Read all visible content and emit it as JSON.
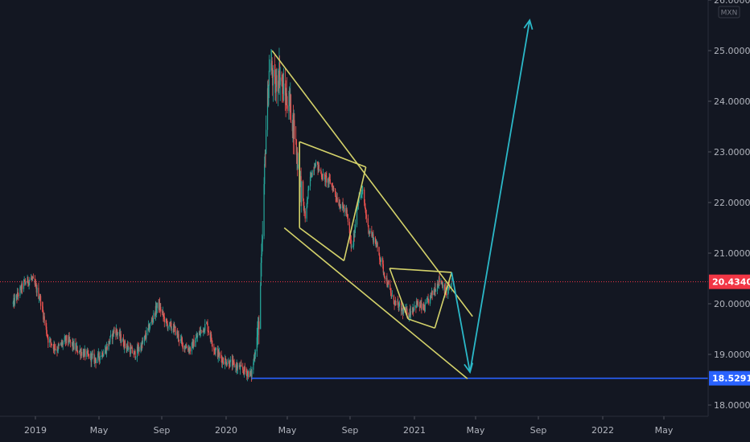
{
  "chart_data": {
    "type": "candlestick",
    "currency": "MXN",
    "y_ticks": [
      "18.00000",
      "19.00000",
      "20.00000",
      "21.00000",
      "22.00000",
      "23.00000",
      "24.00000",
      "25.00000",
      "26.00000"
    ],
    "y_tick_values": [
      18,
      19,
      20,
      21,
      22,
      23,
      24,
      25,
      26
    ],
    "x_ticks": [
      "2019",
      "May",
      "Sep",
      "2020",
      "May",
      "Sep",
      "2021",
      "May",
      "Sep",
      "2022",
      "May"
    ],
    "x_tick_dates": [
      "2019-01-01",
      "2019-05-01",
      "2019-09-01",
      "2020-01-01",
      "2020-05-01",
      "2020-09-01",
      "2021-01-01",
      "2021-05-01",
      "2021-09-01",
      "2022-01-01",
      "2022-05-01"
    ],
    "ylim": [
      17.85,
      26.0
    ],
    "last_price": {
      "label": "20.43405",
      "value": 20.434,
      "color": "#f23645"
    },
    "support": {
      "label": "18.52916",
      "value": 18.529,
      "color": "#2962ff",
      "from_date": "2020-02-20"
    },
    "candle_colors": {
      "up": "#26a69a",
      "down": "#ef5350"
    },
    "series_closes": [
      {
        "date": "2018-11-20",
        "close": 20.0
      },
      {
        "date": "2018-12-10",
        "close": 20.4
      },
      {
        "date": "2018-12-25",
        "close": 20.5
      },
      {
        "date": "2019-01-10",
        "close": 20.1
      },
      {
        "date": "2019-01-25",
        "close": 19.3
      },
      {
        "date": "2019-02-10",
        "close": 19.1
      },
      {
        "date": "2019-03-01",
        "close": 19.3
      },
      {
        "date": "2019-03-20",
        "close": 19.1
      },
      {
        "date": "2019-04-05",
        "close": 19.0
      },
      {
        "date": "2019-04-25",
        "close": 18.9
      },
      {
        "date": "2019-05-15",
        "close": 19.1
      },
      {
        "date": "2019-06-01",
        "close": 19.5
      },
      {
        "date": "2019-06-20",
        "close": 19.2
      },
      {
        "date": "2019-07-10",
        "close": 19.0
      },
      {
        "date": "2019-07-25",
        "close": 19.2
      },
      {
        "date": "2019-08-10",
        "close": 19.6
      },
      {
        "date": "2019-08-25",
        "close": 20.0
      },
      {
        "date": "2019-09-10",
        "close": 19.6
      },
      {
        "date": "2019-09-25",
        "close": 19.5
      },
      {
        "date": "2019-10-10",
        "close": 19.2
      },
      {
        "date": "2019-10-25",
        "close": 19.1
      },
      {
        "date": "2019-11-10",
        "close": 19.4
      },
      {
        "date": "2019-11-25",
        "close": 19.6
      },
      {
        "date": "2019-12-10",
        "close": 19.1
      },
      {
        "date": "2019-12-25",
        "close": 18.9
      },
      {
        "date": "2020-01-15",
        "close": 18.8
      },
      {
        "date": "2020-02-01",
        "close": 18.7
      },
      {
        "date": "2020-02-20",
        "close": 18.6
      },
      {
        "date": "2020-03-05",
        "close": 19.5
      },
      {
        "date": "2020-03-12",
        "close": 21.0
      },
      {
        "date": "2020-03-20",
        "close": 23.5
      },
      {
        "date": "2020-03-28",
        "close": 24.9
      },
      {
        "date": "2020-04-05",
        "close": 24.2
      },
      {
        "date": "2020-04-15",
        "close": 24.6
      },
      {
        "date": "2020-04-25",
        "close": 24.1
      },
      {
        "date": "2020-05-05",
        "close": 24.0
      },
      {
        "date": "2020-05-15",
        "close": 23.4
      },
      {
        "date": "2020-05-25",
        "close": 22.5
      },
      {
        "date": "2020-06-05",
        "close": 21.7
      },
      {
        "date": "2020-06-15",
        "close": 22.5
      },
      {
        "date": "2020-06-25",
        "close": 22.8
      },
      {
        "date": "2020-07-10",
        "close": 22.5
      },
      {
        "date": "2020-07-25",
        "close": 22.4
      },
      {
        "date": "2020-08-10",
        "close": 22.0
      },
      {
        "date": "2020-08-25",
        "close": 21.8
      },
      {
        "date": "2020-09-05",
        "close": 21.0
      },
      {
        "date": "2020-09-15",
        "close": 22.0
      },
      {
        "date": "2020-09-25",
        "close": 22.2
      },
      {
        "date": "2020-10-05",
        "close": 21.5
      },
      {
        "date": "2020-10-20",
        "close": 21.2
      },
      {
        "date": "2020-11-05",
        "close": 20.6
      },
      {
        "date": "2020-11-20",
        "close": 20.1
      },
      {
        "date": "2020-12-05",
        "close": 19.9
      },
      {
        "date": "2020-12-20",
        "close": 19.8
      },
      {
        "date": "2021-01-05",
        "close": 20.0
      },
      {
        "date": "2021-01-20",
        "close": 19.9
      },
      {
        "date": "2021-02-05",
        "close": 20.2
      },
      {
        "date": "2021-02-20",
        "close": 20.5
      },
      {
        "date": "2021-03-05",
        "close": 20.2
      },
      {
        "date": "2021-03-15",
        "close": 20.4
      }
    ],
    "drawings": {
      "channel_color": "#d4d26a",
      "arrow_color": "#2bb8c8",
      "channel_lines": [
        [
          {
            "date": "2020-04-01",
            "value": 25.0
          },
          {
            "date": "2021-04-25",
            "value": 19.75
          }
        ],
        [
          {
            "date": "2020-04-25",
            "value": 21.5
          },
          {
            "date": "2021-04-15",
            "value": 18.52
          }
        ],
        [
          {
            "date": "2020-05-25",
            "value": 23.2
          },
          {
            "date": "2020-10-01",
            "value": 22.7
          }
        ],
        [
          {
            "date": "2020-05-25",
            "value": 21.5
          },
          {
            "date": "2020-08-20",
            "value": 20.85
          }
        ],
        [
          {
            "date": "2020-08-20",
            "value": 20.85
          },
          {
            "date": "2020-10-01",
            "value": 22.7
          }
        ],
        [
          {
            "date": "2020-05-25",
            "value": 23.2
          },
          {
            "date": "2020-05-25",
            "value": 21.5
          }
        ],
        [
          {
            "date": "2020-11-15",
            "value": 20.7
          },
          {
            "date": "2021-03-15",
            "value": 20.62
          }
        ],
        [
          {
            "date": "2020-11-15",
            "value": 20.7
          },
          {
            "date": "2020-12-20",
            "value": 19.7
          }
        ],
        [
          {
            "date": "2020-12-20",
            "value": 19.7
          },
          {
            "date": "2021-02-10",
            "value": 19.52
          }
        ],
        [
          {
            "date": "2021-02-10",
            "value": 19.52
          },
          {
            "date": "2021-03-15",
            "value": 20.62
          }
        ]
      ],
      "arrow_path": [
        {
          "date": "2021-03-15",
          "value": 20.62
        },
        {
          "date": "2021-04-20",
          "value": 18.65
        },
        {
          "date": "2021-08-15",
          "value": 25.6
        }
      ]
    }
  }
}
